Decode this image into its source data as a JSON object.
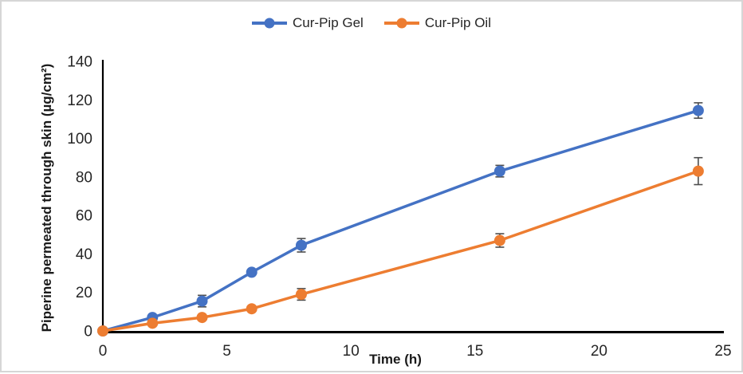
{
  "legend": {
    "items": [
      {
        "label": "Cur-Pip Gel",
        "color": "#4472C4"
      },
      {
        "label": "Cur-Pip Oil",
        "color": "#ED7D31"
      }
    ]
  },
  "chart_data": {
    "type": "line",
    "title": "",
    "xlabel": "Time (h)",
    "ylabel": "Piperine permeated through skin (µg/cm²)",
    "x": [
      0,
      2,
      4,
      6,
      8,
      16,
      24
    ],
    "series": [
      {
        "name": "Cur-Pip Gel",
        "color": "#4472C4",
        "values": [
          0,
          7,
          15.5,
          30.5,
          44.5,
          83,
          114.5
        ],
        "errors": [
          0,
          0,
          3,
          0,
          3.5,
          3,
          4
        ]
      },
      {
        "name": "Cur-Pip Oil",
        "color": "#ED7D31",
        "values": [
          0,
          4,
          7,
          11.5,
          19,
          47,
          83
        ],
        "errors": [
          0,
          0,
          0,
          0,
          3,
          3.5,
          7
        ]
      }
    ],
    "xlim": [
      0,
      25
    ],
    "ylim": [
      0,
      140
    ],
    "x_ticks": [
      0,
      5,
      10,
      15,
      20,
      25
    ],
    "y_ticks": [
      0,
      20,
      40,
      60,
      80,
      100,
      120,
      140
    ],
    "grid": false,
    "legend_position": "top-center",
    "axis_line_color": "#000000",
    "tick_label_color": "#262626",
    "error_bar_color": "#4d4d4d"
  }
}
